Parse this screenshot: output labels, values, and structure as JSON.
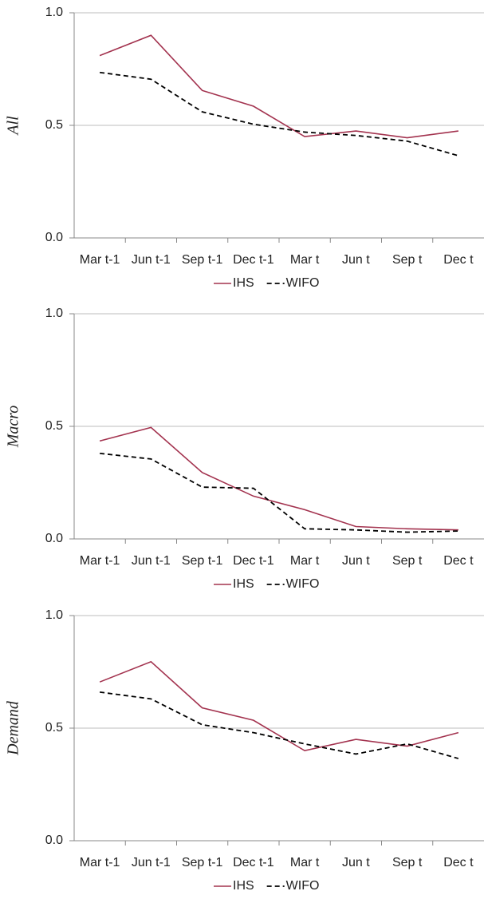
{
  "chart_data": [
    {
      "type": "line",
      "y_label": "All",
      "categories": [
        "Mar t-1",
        "Jun t-1",
        "Sep t-1",
        "Dec t-1",
        "Mar t",
        "Jun t",
        "Sep t",
        "Dec t"
      ],
      "series": [
        {
          "name": "IHS",
          "color": "#a3334f",
          "values": [
            0.81,
            0.9,
            0.655,
            0.585,
            0.45,
            0.475,
            0.445,
            0.475
          ]
        },
        {
          "name": "WIFO",
          "color": "#000000",
          "dashed": true,
          "values": [
            0.735,
            0.705,
            0.56,
            0.505,
            0.47,
            0.455,
            0.43,
            0.365
          ]
        }
      ],
      "ylim": [
        0,
        1
      ],
      "yticks": [
        {
          "value": 0,
          "label": "0.0"
        },
        0.5,
        {
          "value": 1,
          "label": "1.0"
        }
      ],
      "grid": true
    },
    {
      "type": "line",
      "y_label": "Macro",
      "categories": [
        "Mar t-1",
        "Jun t-1",
        "Sep t-1",
        "Dec t-1",
        "Mar t",
        "Jun t",
        "Sep t",
        "Dec t"
      ],
      "series": [
        {
          "name": "IHS",
          "color": "#a3334f",
          "values": [
            0.435,
            0.495,
            0.295,
            0.19,
            0.13,
            0.055,
            0.045,
            0.04
          ]
        },
        {
          "name": "WIFO",
          "color": "#000000",
          "dashed": true,
          "values": [
            0.38,
            0.355,
            0.23,
            0.225,
            0.045,
            0.04,
            0.03,
            0.035
          ]
        }
      ],
      "ylim": [
        0,
        1
      ],
      "yticks": [
        {
          "value": 0,
          "label": "0.0"
        },
        0.5,
        {
          "value": 1,
          "label": "1.0"
        }
      ],
      "grid": true
    },
    {
      "type": "line",
      "y_label": "Demand",
      "categories": [
        "Mar t-1",
        "Jun t-1",
        "Sep t-1",
        "Dec t-1",
        "Mar t",
        "Jun t",
        "Sep t",
        "Dec t"
      ],
      "series": [
        {
          "name": "IHS",
          "color": "#a3334f",
          "values": [
            0.705,
            0.795,
            0.59,
            0.535,
            0.4,
            0.45,
            0.42,
            0.48
          ]
        },
        {
          "name": "WIFO",
          "color": "#000000",
          "dashed": true,
          "values": [
            0.66,
            0.63,
            0.515,
            0.48,
            0.43,
            0.385,
            0.43,
            0.365
          ]
        }
      ],
      "ylim": [
        0,
        1
      ],
      "yticks": [
        {
          "value": 0,
          "label": "0.0"
        },
        0.5,
        {
          "value": 1,
          "label": "1.0"
        }
      ],
      "grid": true
    }
  ]
}
